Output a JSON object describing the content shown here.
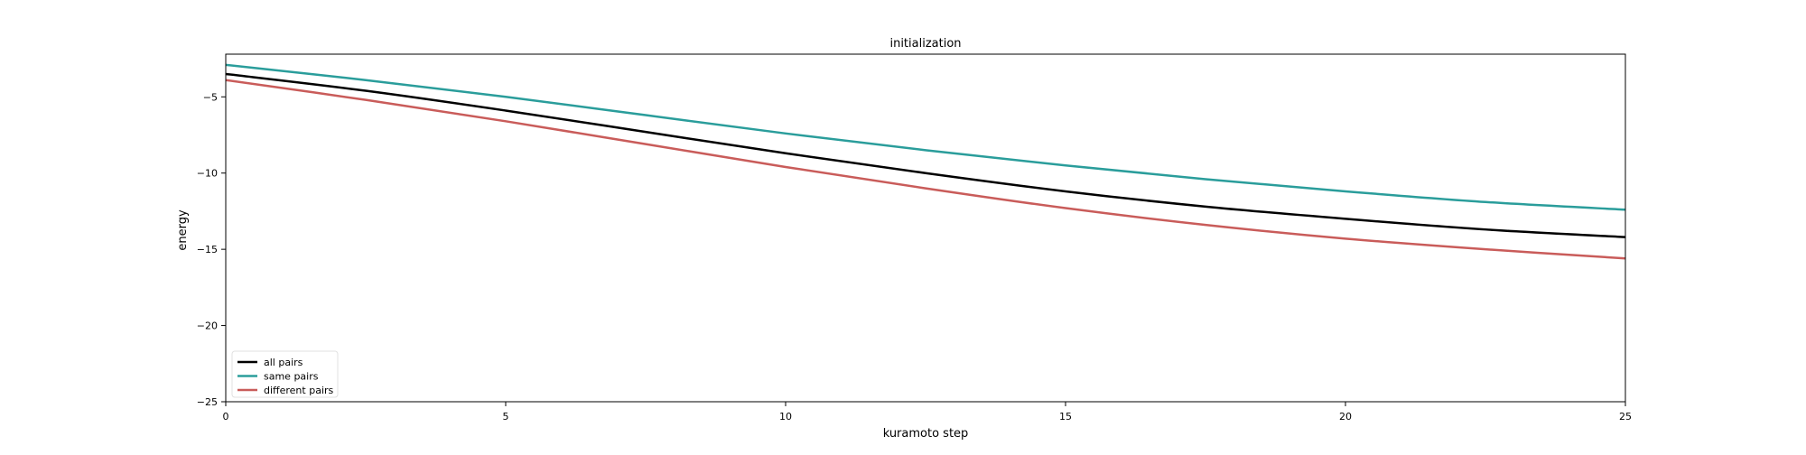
{
  "chart_data": {
    "type": "line",
    "title": "initialization",
    "xlabel": "kuramoto step",
    "ylabel": "energy",
    "xlim": [
      0,
      25
    ],
    "ylim": [
      -25,
      -2.2
    ],
    "xticks": [
      0,
      5,
      10,
      15,
      20,
      25
    ],
    "xtick_labels": [
      "0",
      "5",
      "10",
      "15",
      "20",
      "25"
    ],
    "yticks": [
      -25,
      -20,
      -15,
      -10,
      -5
    ],
    "ytick_labels": [
      "−25",
      "−20",
      "−15",
      "−10",
      "−5"
    ],
    "grid": false,
    "legend_position": "lower-left",
    "x": [
      0,
      2.5,
      5,
      7.5,
      10,
      12.5,
      15,
      17.5,
      20,
      22.5,
      25
    ],
    "series": [
      {
        "name": "all pairs",
        "color": "#000000",
        "values": [
          -3.5,
          -4.6,
          -5.9,
          -7.3,
          -8.7,
          -10.0,
          -11.2,
          -12.2,
          -13.0,
          -13.7,
          -14.2
        ]
      },
      {
        "name": "same pairs",
        "color": "#2a9d9b",
        "values": [
          -2.9,
          -3.9,
          -5.0,
          -6.2,
          -7.4,
          -8.5,
          -9.5,
          -10.4,
          -11.2,
          -11.9,
          -12.4
        ]
      },
      {
        "name": "different pairs",
        "color": "#c95c5a",
        "values": [
          -3.9,
          -5.2,
          -6.6,
          -8.1,
          -9.6,
          -11.0,
          -12.3,
          -13.4,
          -14.3,
          -15.0,
          -15.6
        ]
      }
    ]
  }
}
